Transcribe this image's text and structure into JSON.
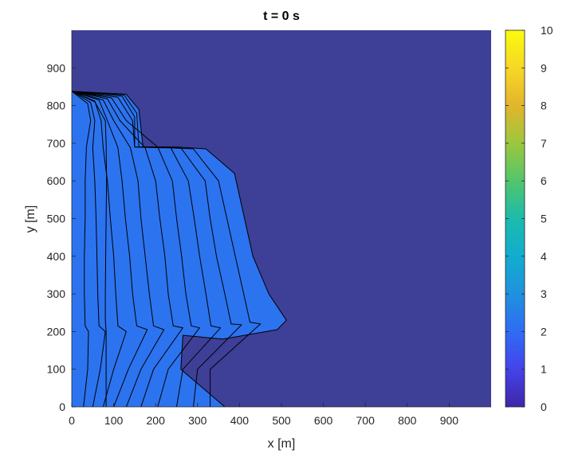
{
  "chart_data": {
    "type": "heatmap",
    "title": "t = 0 s",
    "xlabel": "x [m]",
    "ylabel": "y [m]",
    "xlim": [
      0,
      1000
    ],
    "ylim": [
      0,
      1000
    ],
    "x_ticks": [
      0,
      100,
      200,
      300,
      400,
      500,
      600,
      700,
      800,
      900
    ],
    "y_ticks": [
      0,
      100,
      200,
      300,
      400,
      500,
      600,
      700,
      800,
      900
    ],
    "colorbar": {
      "range": [
        0,
        10
      ],
      "ticks": [
        0,
        1,
        2,
        3,
        4,
        5,
        6,
        7,
        8,
        9,
        10
      ]
    },
    "background_value": 0,
    "region_value": 2.2,
    "contour_color": "#000000",
    "contours": [
      [
        [
          0,
          838
        ],
        [
          55,
          810
        ],
        [
          80,
          760
        ],
        [
          82,
          700
        ],
        [
          83,
          600
        ],
        [
          82,
          500
        ],
        [
          81,
          400
        ],
        [
          80,
          300
        ],
        [
          80,
          230
        ],
        [
          82,
          200
        ],
        [
          82,
          100
        ],
        [
          82,
          0
        ]
      ],
      [
        [
          0,
          838
        ],
        [
          38,
          805
        ],
        [
          45,
          760
        ],
        [
          35,
          690
        ],
        [
          32,
          600
        ],
        [
          32,
          500
        ],
        [
          30,
          400
        ],
        [
          30,
          300
        ],
        [
          32,
          215
        ],
        [
          40,
          200
        ],
        [
          38,
          100
        ],
        [
          28,
          0
        ]
      ],
      [
        [
          0,
          838
        ],
        [
          45,
          808
        ],
        [
          55,
          760
        ],
        [
          50,
          688
        ],
        [
          55,
          600
        ],
        [
          58,
          500
        ],
        [
          60,
          400
        ],
        [
          62,
          300
        ],
        [
          65,
          215
        ],
        [
          80,
          200
        ],
        [
          68,
          100
        ],
        [
          50,
          0
        ]
      ],
      [
        [
          0,
          838
        ],
        [
          55,
          812
        ],
        [
          70,
          760
        ],
        [
          75,
          688
        ],
        [
          85,
          600
        ],
        [
          92,
          500
        ],
        [
          100,
          400
        ],
        [
          105,
          300
        ],
        [
          110,
          215
        ],
        [
          130,
          200
        ],
        [
          100,
          100
        ],
        [
          75,
          0
        ]
      ],
      [
        [
          0,
          838
        ],
        [
          65,
          815
        ],
        [
          85,
          760
        ],
        [
          110,
          688
        ],
        [
          120,
          600
        ],
        [
          128,
          500
        ],
        [
          138,
          400
        ],
        [
          145,
          300
        ],
        [
          155,
          215
        ],
        [
          180,
          205
        ],
        [
          135,
          100
        ],
        [
          100,
          0
        ]
      ],
      [
        [
          0,
          838
        ],
        [
          75,
          815
        ],
        [
          100,
          760
        ],
        [
          140,
          688
        ],
        [
          158,
          600
        ],
        [
          165,
          500
        ],
        [
          175,
          400
        ],
        [
          185,
          300
        ],
        [
          195,
          215
        ],
        [
          220,
          205
        ],
        [
          165,
          100
        ],
        [
          130,
          0
        ]
      ],
      [
        [
          0,
          838
        ],
        [
          85,
          818
        ],
        [
          115,
          760
        ],
        [
          175,
          688
        ],
        [
          200,
          600
        ],
        [
          210,
          500
        ],
        [
          222,
          400
        ],
        [
          230,
          300
        ],
        [
          242,
          215
        ],
        [
          265,
          210
        ],
        [
          195,
          100
        ],
        [
          165,
          0
        ]
      ],
      [
        [
          0,
          838
        ],
        [
          95,
          820
        ],
        [
          130,
          760
        ],
        [
          205,
          690
        ],
        [
          240,
          600
        ],
        [
          250,
          500
        ],
        [
          262,
          400
        ],
        [
          272,
          300
        ],
        [
          285,
          215
        ],
        [
          305,
          210
        ],
        [
          230,
          100
        ],
        [
          205,
          0
        ]
      ],
      [
        [
          0,
          838
        ],
        [
          110,
          822
        ],
        [
          145,
          760
        ],
        [
          150,
          690
        ],
        [
          235,
          690
        ],
        [
          278,
          600
        ],
        [
          292,
          500
        ],
        [
          305,
          400
        ],
        [
          320,
          300
        ],
        [
          332,
          215
        ],
        [
          355,
          210
        ],
        [
          265,
          100
        ],
        [
          250,
          0
        ]
      ],
      [
        [
          0,
          838
        ],
        [
          120,
          825
        ],
        [
          150,
          770
        ],
        [
          150,
          690
        ],
        [
          210,
          688
        ],
        [
          260,
          688
        ],
        [
          318,
          600
        ],
        [
          330,
          500
        ],
        [
          345,
          400
        ],
        [
          365,
          300
        ],
        [
          380,
          220
        ],
        [
          405,
          218
        ],
        [
          300,
          100
        ],
        [
          290,
          0
        ]
      ],
      [
        [
          0,
          838
        ],
        [
          125,
          828
        ],
        [
          155,
          780
        ],
        [
          160,
          690
        ],
        [
          230,
          688
        ],
        [
          290,
          685
        ],
        [
          350,
          600
        ],
        [
          370,
          500
        ],
        [
          390,
          400
        ],
        [
          410,
          300
        ],
        [
          425,
          225
        ],
        [
          450,
          220
        ],
        [
          330,
          100
        ],
        [
          330,
          0
        ]
      ],
      [
        [
          0,
          838
        ],
        [
          130,
          830
        ],
        [
          160,
          790
        ],
        [
          170,
          690
        ],
        [
          250,
          690
        ],
        [
          320,
          685
        ],
        [
          388,
          620
        ],
        [
          408,
          520
        ],
        [
          432,
          400
        ],
        [
          470,
          300
        ],
        [
          512,
          230
        ],
        [
          490,
          205
        ],
        [
          360,
          180
        ],
        [
          265,
          190
        ],
        [
          260,
          100
        ],
        [
          365,
          0
        ]
      ]
    ]
  }
}
